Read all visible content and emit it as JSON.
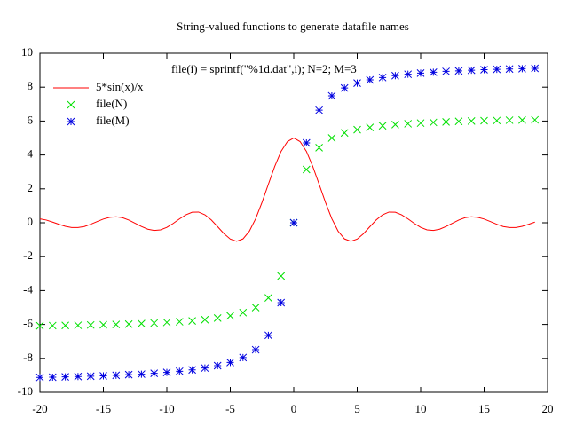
{
  "chart_data": {
    "type": "line",
    "title": "String-valued functions to generate datafile names",
    "annotation": "file(i) = sprintf(\"%1d.dat\",i); N=2; M=3",
    "xlim": [
      -20,
      20
    ],
    "xticks": [
      -20,
      -15,
      -10,
      -5,
      0,
      5,
      10,
      15,
      20
    ],
    "ylim": [
      -10,
      10
    ],
    "yticks": [
      -10,
      -8,
      -6,
      -4,
      -2,
      0,
      2,
      4,
      6,
      8,
      10
    ],
    "legend": "top-left",
    "series": [
      {
        "name": "5*sin(x)/x",
        "style": "line",
        "color": "#ff0000",
        "x": [
          -20,
          -19.5,
          -19,
          -18.5,
          -18,
          -17.5,
          -17,
          -16.5,
          -16,
          -15.5,
          -15,
          -14.5,
          -14,
          -13.5,
          -13,
          -12.5,
          -12,
          -11.5,
          -11,
          -10.5,
          -10,
          -9.5,
          -9,
          -8.5,
          -8,
          -7.5,
          -7,
          -6.5,
          -6,
          -5.5,
          -5,
          -4.5,
          -4,
          -3.5,
          -3,
          -2.5,
          -2,
          -1.5,
          -1,
          -0.5,
          0,
          0.5,
          1,
          1.5,
          2,
          2.5,
          3,
          3.5,
          4,
          4.5,
          5,
          5.5,
          6,
          6.5,
          7,
          7.5,
          8,
          8.5,
          9,
          9.5,
          10,
          10.5,
          11,
          11.5,
          12,
          12.5,
          13,
          13.5,
          14,
          14.5,
          15,
          15.5,
          16,
          16.5,
          17,
          17.5,
          18,
          18.5,
          19
        ],
        "values": [
          0.23,
          0.16,
          0.04,
          -0.09,
          -0.21,
          -0.28,
          -0.28,
          -0.22,
          -0.09,
          0.07,
          0.22,
          0.32,
          0.35,
          0.3,
          0.16,
          -0.03,
          -0.22,
          -0.38,
          -0.45,
          -0.42,
          -0.27,
          -0.04,
          0.23,
          0.47,
          0.62,
          0.63,
          0.47,
          0.17,
          -0.23,
          -0.64,
          -0.96,
          -1.09,
          -0.95,
          -0.5,
          0.24,
          1.2,
          2.27,
          3.32,
          4.21,
          4.79,
          5,
          4.79,
          4.21,
          3.32,
          2.27,
          1.2,
          0.24,
          -0.5,
          -0.95,
          -1.09,
          -0.96,
          -0.64,
          -0.23,
          0.17,
          0.47,
          0.63,
          0.62,
          0.47,
          0.23,
          -0.04,
          -0.27,
          -0.42,
          -0.45,
          -0.38,
          -0.22,
          -0.03,
          0.16,
          0.3,
          0.35,
          0.32,
          0.22,
          0.07,
          -0.09,
          -0.22,
          -0.28,
          -0.28,
          -0.21,
          -0.09,
          0.04
        ]
      },
      {
        "name": "file(N)",
        "style": "cross",
        "color": "#00e000",
        "x": [
          -20,
          -19,
          -18,
          -17,
          -16,
          -15,
          -14,
          -13,
          -12,
          -11,
          -10,
          -9,
          -8,
          -7,
          -6,
          -5,
          -4,
          -3,
          -2,
          -1,
          0,
          1,
          2,
          3,
          4,
          5,
          6,
          7,
          8,
          9,
          10,
          11,
          12,
          13,
          14,
          15,
          16,
          17,
          18,
          19
        ],
        "values": [
          -6.08,
          -6.07,
          -6.06,
          -6.05,
          -6.03,
          -6.02,
          -6.0,
          -5.98,
          -5.95,
          -5.92,
          -5.88,
          -5.84,
          -5.79,
          -5.72,
          -5.62,
          -5.49,
          -5.3,
          -5.0,
          -4.43,
          -3.14,
          0,
          3.14,
          4.43,
          5.0,
          5.3,
          5.49,
          5.62,
          5.72,
          5.79,
          5.84,
          5.88,
          5.92,
          5.95,
          5.98,
          6.0,
          6.02,
          6.03,
          6.05,
          6.06,
          6.07
        ]
      },
      {
        "name": "file(M)",
        "style": "star",
        "color": "#0000e0",
        "x": [
          -20,
          -19,
          -18,
          -17,
          -16,
          -15,
          -14,
          -13,
          -12,
          -11,
          -10,
          -9,
          -8,
          -7,
          -6,
          -5,
          -4,
          -3,
          -2,
          -1,
          0,
          1,
          2,
          3,
          4,
          5,
          6,
          7,
          8,
          9,
          10,
          11,
          12,
          13,
          14,
          15,
          16,
          17,
          18,
          19
        ],
        "values": [
          -9.12,
          -9.11,
          -9.09,
          -9.07,
          -9.05,
          -9.03,
          -9.0,
          -8.96,
          -8.93,
          -8.88,
          -8.83,
          -8.76,
          -8.68,
          -8.57,
          -8.43,
          -8.24,
          -7.95,
          -7.49,
          -6.64,
          -4.71,
          0,
          4.71,
          6.64,
          7.49,
          7.95,
          8.24,
          8.43,
          8.57,
          8.68,
          8.76,
          8.83,
          8.88,
          8.93,
          8.96,
          9.0,
          9.03,
          9.05,
          9.07,
          9.09,
          9.11
        ]
      }
    ]
  }
}
